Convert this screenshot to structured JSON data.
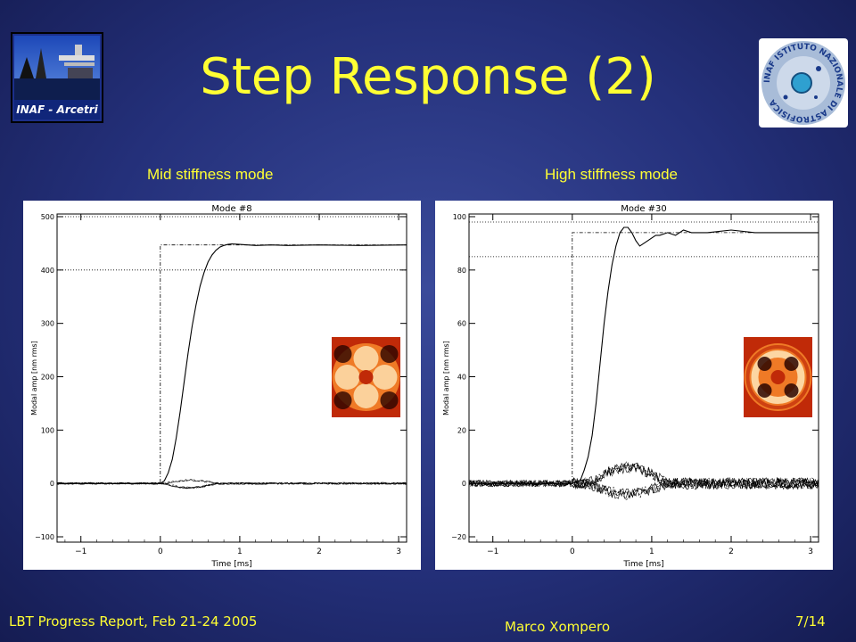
{
  "slide": {
    "title": "Step Response (2)",
    "left_logo_text": "INAF - Arcetri",
    "right_logo_text": "INAF ISTITUTO NAZIONALE DI ASTROFISICA",
    "left_subtitle": "Mid stiffness mode",
    "right_subtitle": "High stiffness mode",
    "footer_left": "LBT Progress Report, Feb 21-24 2005",
    "footer_center": "Marco Xompero",
    "footer_right": "7/14"
  },
  "chart_data": [
    {
      "type": "line",
      "title": "Mode #8",
      "xlabel": "Time [ms]",
      "ylabel": "Modal amp [nm rms]",
      "xlim": [
        -1.3,
        3.1
      ],
      "ylim": [
        -110,
        505
      ],
      "xticks": [
        -1,
        0,
        1,
        2,
        3
      ],
      "yticks": [
        -100,
        0,
        100,
        200,
        300,
        400,
        500
      ],
      "grid": false,
      "reference_lines": [
        400,
        500
      ],
      "series": [
        {
          "style": "dash-dot",
          "x": [
            -1.3,
            0.0,
            0.0,
            3.1
          ],
          "y": [
            0,
            0,
            447,
            447
          ]
        },
        {
          "style": "solid",
          "x": [
            -1.3,
            0.0,
            0.05,
            0.1,
            0.15,
            0.2,
            0.25,
            0.3,
            0.35,
            0.4,
            0.45,
            0.5,
            0.55,
            0.6,
            0.65,
            0.7,
            0.75,
            0.8,
            0.85,
            0.9,
            1.0,
            1.2,
            1.4,
            1.6,
            2.0,
            2.5,
            3.1
          ],
          "y": [
            0,
            0,
            5,
            20,
            45,
            85,
            135,
            190,
            245,
            295,
            335,
            370,
            395,
            415,
            428,
            437,
            443,
            446,
            448,
            449,
            448,
            446,
            447,
            446,
            447,
            446,
            447
          ]
        }
      ]
    },
    {
      "type": "line",
      "title": "Mode #30",
      "xlabel": "Time [ms]",
      "ylabel": "Modal amp [nm rms]",
      "xlim": [
        -1.3,
        3.1
      ],
      "ylim": [
        -22,
        101
      ],
      "xticks": [
        -1,
        0,
        1,
        2,
        3
      ],
      "yticks": [
        -20,
        0,
        20,
        40,
        60,
        80,
        100
      ],
      "grid": false,
      "reference_lines": [
        85,
        98
      ],
      "series": [
        {
          "style": "dash-dot",
          "x": [
            -1.3,
            0.0,
            0.0,
            3.1
          ],
          "y": [
            0,
            0,
            94,
            94
          ]
        },
        {
          "style": "solid",
          "x": [
            -1.3,
            0.0,
            0.1,
            0.15,
            0.2,
            0.25,
            0.3,
            0.35,
            0.4,
            0.45,
            0.5,
            0.55,
            0.6,
            0.65,
            0.7,
            0.75,
            0.8,
            0.85,
            0.9,
            0.95,
            1.0,
            1.05,
            1.1,
            1.2,
            1.3,
            1.4,
            1.5,
            1.7,
            2.0,
            2.3,
            2.6,
            2.9,
            3.1
          ],
          "y": [
            0,
            0,
            1,
            5,
            10,
            18,
            30,
            45,
            60,
            72,
            82,
            89,
            94,
            96,
            96,
            94,
            91,
            89,
            90,
            91,
            92,
            93,
            93,
            94,
            93,
            95,
            94,
            94,
            95,
            94,
            94,
            94,
            94
          ]
        }
      ]
    }
  ]
}
